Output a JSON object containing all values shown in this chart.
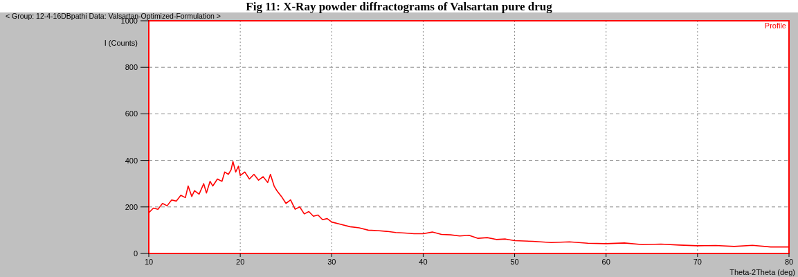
{
  "chart_data": {
    "type": "line",
    "title": "Fig 11: X-Ray powder diffractograms of Valsartan pure drug",
    "xlabel": "Theta-2Theta (deg)",
    "ylabel": "I (Counts)",
    "annotations": [
      "< Group: 12-4-16DBpathi   Data: Valsartan-Optimized-Formulation >",
      "Profile"
    ],
    "xlim": [
      10,
      80
    ],
    "xticks": [
      10,
      20,
      30,
      40,
      50,
      60,
      70,
      80
    ],
    "ylim": [
      0,
      1000
    ],
    "yticks": [
      0,
      200,
      400,
      600,
      800,
      1000
    ],
    "grid": true,
    "line_style": "solid",
    "marker": "none",
    "series": [
      {
        "color": "#ff0000",
        "x": [
          10,
          10.5,
          11,
          11.5,
          12,
          12.5,
          13,
          13.5,
          14,
          14.3,
          14.7,
          15,
          15.5,
          16,
          16.3,
          16.7,
          17,
          17.5,
          18,
          18.3,
          18.7,
          19,
          19.2,
          19.5,
          19.8,
          20,
          20.5,
          21,
          21.5,
          22,
          22.5,
          23,
          23.3,
          23.7,
          24,
          24.5,
          25,
          25.5,
          26,
          26.5,
          27,
          27.5,
          28,
          28.5,
          29,
          29.5,
          30,
          31,
          32,
          33,
          34,
          35,
          36,
          37,
          38,
          39,
          40,
          41,
          42,
          43,
          44,
          45,
          46,
          47,
          48,
          49,
          50,
          52,
          54,
          56,
          58,
          60,
          62,
          64,
          66,
          68,
          70,
          72,
          74,
          76,
          78,
          80
        ],
        "values": [
          175,
          195,
          190,
          215,
          205,
          230,
          225,
          250,
          240,
          290,
          245,
          270,
          255,
          300,
          260,
          310,
          290,
          320,
          310,
          350,
          340,
          360,
          395,
          350,
          375,
          335,
          350,
          320,
          340,
          315,
          330,
          305,
          340,
          290,
          270,
          245,
          215,
          230,
          190,
          200,
          170,
          180,
          160,
          165,
          145,
          150,
          135,
          125,
          115,
          110,
          100,
          98,
          95,
          90,
          88,
          85,
          85,
          92,
          82,
          80,
          75,
          78,
          65,
          68,
          60,
          62,
          55,
          52,
          47,
          50,
          44,
          42,
          45,
          38,
          40,
          36,
          33,
          34,
          30,
          35,
          28,
          28
        ]
      }
    ]
  }
}
